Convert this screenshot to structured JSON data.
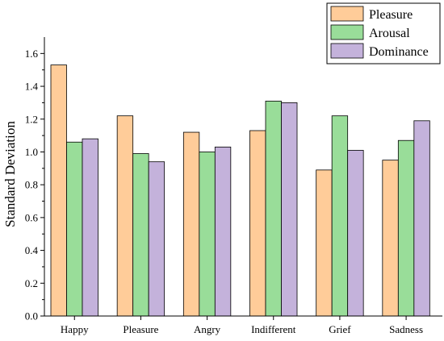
{
  "chart_data": {
    "type": "bar",
    "title": "",
    "xlabel": "",
    "ylabel": "Standard Deviation",
    "ylim": [
      0,
      1.7
    ],
    "yticks": [
      "0.0",
      "0.2",
      "0.4",
      "0.6",
      "0.8",
      "1.0",
      "1.2",
      "1.4",
      "1.6"
    ],
    "categories": [
      "Happy",
      "Pleasure",
      "Angry",
      "Indifferent",
      "Grief",
      "Sadness"
    ],
    "series": [
      {
        "name": "Pleasure",
        "color": "#FFCC99",
        "values": [
          1.53,
          1.22,
          1.12,
          1.13,
          0.89,
          0.95
        ]
      },
      {
        "name": "Arousal",
        "color": "#99DD99",
        "values": [
          1.06,
          0.99,
          1.0,
          1.31,
          1.22,
          1.07
        ]
      },
      {
        "name": "Dominance",
        "color": "#C4B2DB",
        "values": [
          1.08,
          0.94,
          1.03,
          1.3,
          1.01,
          1.19
        ]
      }
    ],
    "legend_position": "top-right",
    "grid": false
  }
}
